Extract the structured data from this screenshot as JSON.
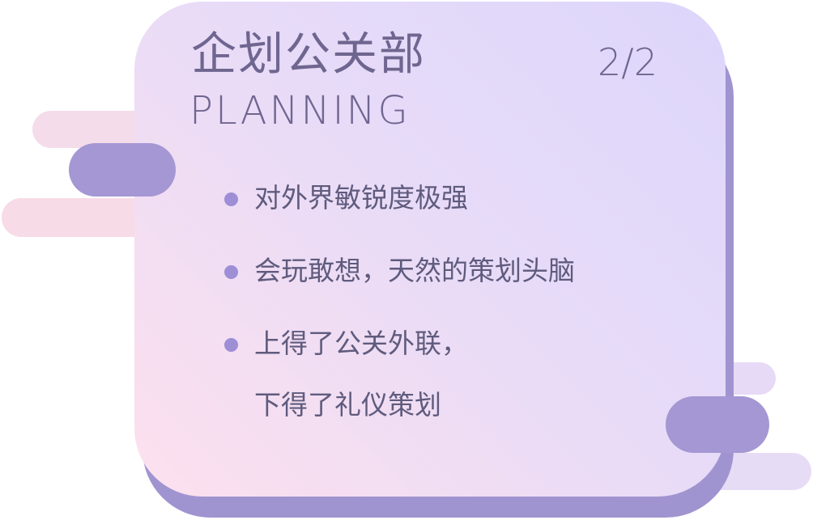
{
  "card": {
    "title_cn": "企划公关部",
    "title_en": "PLANNING",
    "page_indicator": "2/2"
  },
  "bullets": [
    {
      "lines": [
        "对外界敏锐度极强"
      ]
    },
    {
      "lines": [
        "会玩敢想，天然的策划头脑"
      ]
    },
    {
      "lines": [
        "上得了公关外联，",
        "下得了礼仪策划"
      ]
    }
  ],
  "colors": {
    "accent": "#a497d3",
    "text": "#6f6690",
    "card_gradient_start": "#ddd6fb",
    "card_gradient_end": "#fde0ee"
  }
}
